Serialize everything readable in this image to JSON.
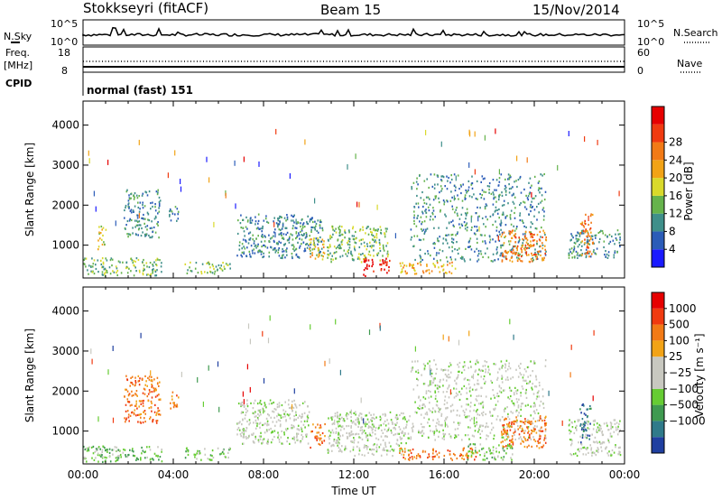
{
  "header": {
    "station": "Stokkseyri (fitACF)",
    "beam": "Beam 15",
    "date": "15/Nov/2014"
  },
  "panels": {
    "nsky": {
      "label": "N.Sky",
      "right_label": "N.Search",
      "left_ticks": [
        "10^5",
        "10^0"
      ],
      "right_ticks": [
        "10^5",
        "10^0"
      ]
    },
    "freq": {
      "label": "Freq.",
      "unit": "[MHz]",
      "right_label": "Nave",
      "left_ticks": [
        "18",
        "8"
      ],
      "right_ticks": [
        "60",
        "0"
      ]
    },
    "cpid": {
      "label": "CPID",
      "value": "normal (fast) 151"
    }
  },
  "chart_data": [
    {
      "type": "heatmap",
      "name": "Power",
      "ylabel": "Slant Range [km]",
      "xlabel": "Time UT",
      "ylim": [
        180,
        4600
      ],
      "xlim": [
        0,
        24
      ],
      "y_ticks": [
        1000,
        2000,
        3000,
        4000
      ],
      "y_tick_labels": [
        "1000",
        "2000",
        "3000",
        "4000"
      ],
      "colorbar": {
        "label": "Power [dB]",
        "ticks": [
          "4",
          "8",
          "12",
          "16",
          "20",
          "24",
          "28"
        ],
        "colors": [
          "#1a1aff",
          "#2b5cb8",
          "#3f8f8a",
          "#66b34c",
          "#d9d92b",
          "#f2a316",
          "#f27a16",
          "#f03a10",
          "#e60000"
        ]
      },
      "scatter_regions": [
        {
          "t": [
            0.0,
            3.5
          ],
          "r": [
            250,
            700
          ],
          "level": 3
        },
        {
          "t": [
            1.8,
            3.4
          ],
          "r": [
            1200,
            2400
          ],
          "level": 2
        },
        {
          "t": [
            0.6,
            1.0
          ],
          "r": [
            900,
            1500
          ],
          "level": 4
        },
        {
          "t": [
            3.8,
            4.2
          ],
          "r": [
            1500,
            2000
          ],
          "level": 2
        },
        {
          "t": [
            4.5,
            6.5
          ],
          "r": [
            300,
            600
          ],
          "level": 3
        },
        {
          "t": [
            6.8,
            10.6
          ],
          "r": [
            700,
            1800
          ],
          "level": 2
        },
        {
          "t": [
            10.0,
            10.7
          ],
          "r": [
            600,
            1200
          ],
          "level": 5
        },
        {
          "t": [
            10.8,
            13.5
          ],
          "r": [
            600,
            1500
          ],
          "level": 3
        },
        {
          "t": [
            12.4,
            13.6
          ],
          "r": [
            250,
            700
          ],
          "level": 8
        },
        {
          "t": [
            14.0,
            16.5
          ],
          "r": [
            300,
            600
          ],
          "level": 5
        },
        {
          "t": [
            14.5,
            20.5
          ],
          "r": [
            600,
            2800
          ],
          "level": 2
        },
        {
          "t": [
            18.5,
            20.5
          ],
          "r": [
            600,
            1400
          ],
          "level": 6
        },
        {
          "t": [
            21.5,
            23.8
          ],
          "r": [
            700,
            1400
          ],
          "level": 2
        },
        {
          "t": [
            22.0,
            22.6
          ],
          "r": [
            700,
            1800
          ],
          "level": 6
        }
      ]
    },
    {
      "type": "heatmap",
      "name": "Velocity",
      "ylabel": "Slant Range [km]",
      "xlabel": "Time UT",
      "ylim": [
        180,
        4600
      ],
      "xlim": [
        0,
        24
      ],
      "y_ticks": [
        1000,
        2000,
        3000,
        4000
      ],
      "y_tick_labels": [
        "1000",
        "2000",
        "3000",
        "4000"
      ],
      "x_ticks": [
        0,
        4,
        8,
        12,
        16,
        20,
        24
      ],
      "x_tick_labels": [
        "00:00",
        "04:00",
        "08:00",
        "12:00",
        "16:00",
        "20:00",
        "00:00"
      ],
      "colorbar": {
        "label": "Velocity [m s⁻¹]",
        "ticks": [
          "1000",
          "500",
          "100",
          "25",
          "−25",
          "−100",
          "−500",
          "−1000"
        ],
        "colors": [
          "#1f3fa0",
          "#2f7a8a",
          "#3f9a50",
          "#66cc33",
          "#c8c8c0",
          "#c8c8c0",
          "#f2a316",
          "#f27a16",
          "#f03a10",
          "#e60000"
        ]
      },
      "scatter_regions": [
        {
          "t": [
            0.0,
            3.5
          ],
          "r": [
            250,
            650
          ],
          "level": 3
        },
        {
          "t": [
            1.8,
            3.4
          ],
          "r": [
            1200,
            2400
          ],
          "level": 7
        },
        {
          "t": [
            3.8,
            4.2
          ],
          "r": [
            1500,
            2000
          ],
          "level": 7
        },
        {
          "t": [
            4.5,
            6.5
          ],
          "r": [
            300,
            600
          ],
          "level": 3
        },
        {
          "t": [
            6.8,
            10.0
          ],
          "r": [
            700,
            1800
          ],
          "level": 4
        },
        {
          "t": [
            10.0,
            10.7
          ],
          "r": [
            600,
            1200
          ],
          "level": 7
        },
        {
          "t": [
            10.8,
            14.5
          ],
          "r": [
            400,
            1500
          ],
          "level": 4
        },
        {
          "t": [
            14.0,
            17.5
          ],
          "r": [
            300,
            600
          ],
          "level": 7
        },
        {
          "t": [
            14.5,
            20.5
          ],
          "r": [
            800,
            2800
          ],
          "level": 4
        },
        {
          "t": [
            18.5,
            20.5
          ],
          "r": [
            600,
            1400
          ],
          "level": 7
        },
        {
          "t": [
            17.0,
            19.0
          ],
          "r": [
            300,
            700
          ],
          "level": 3
        },
        {
          "t": [
            21.5,
            23.8
          ],
          "r": [
            400,
            1300
          ],
          "level": 4
        },
        {
          "t": [
            22.0,
            22.5
          ],
          "r": [
            700,
            1700
          ],
          "level": 1
        }
      ]
    }
  ]
}
